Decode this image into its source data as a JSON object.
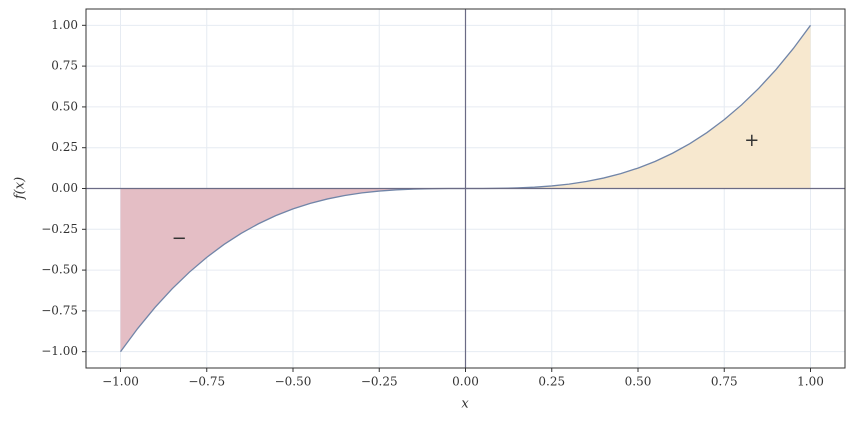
{
  "chart_data": {
    "type": "line",
    "xlabel": "x",
    "ylabel": "f(x)",
    "x": [
      -1,
      -0.95,
      -0.9,
      -0.85,
      -0.8,
      -0.75,
      -0.7,
      -0.65,
      -0.6,
      -0.55,
      -0.5,
      -0.45,
      -0.4,
      -0.35,
      -0.3,
      -0.25,
      -0.2,
      -0.15,
      -0.1,
      -0.05,
      0,
      0.05,
      0.1,
      0.15,
      0.2,
      0.25,
      0.3,
      0.35,
      0.4,
      0.45,
      0.5,
      0.55,
      0.6,
      0.65,
      0.7,
      0.75,
      0.8,
      0.85,
      0.9,
      0.95,
      1
    ],
    "series": [
      {
        "color": "#7185a8",
        "values": [
          -1,
          -0.857375,
          -0.729,
          -0.614125,
          -0.512,
          -0.421875,
          -0.343,
          -0.274625,
          -0.216,
          -0.166375,
          -0.125,
          -0.091125,
          -0.064,
          -0.042875,
          -0.027,
          -0.015625,
          -0.008,
          -0.003375,
          -0.001,
          -0.000125,
          0,
          0.000125,
          0.001,
          0.003375,
          0.008,
          0.015625,
          0.027,
          0.042875,
          0.064,
          0.091125,
          0.125,
          0.166375,
          0.216,
          0.274625,
          0.343,
          0.421875,
          0.512,
          0.614125,
          0.729,
          0.857375,
          1
        ]
      }
    ],
    "fill_colors": {
      "negative": "#e4bec5",
      "positive": "#f7e8cf"
    },
    "annotations": [
      {
        "text": "−",
        "x": -0.83,
        "y": -0.31
      },
      {
        "text": "+",
        "x": 0.83,
        "y": 0.29
      }
    ],
    "xlim": [
      -1.1,
      1.1
    ],
    "ylim": [
      -1.1,
      1.1
    ],
    "xticks": [
      {
        "value": -1,
        "label": "−1.00"
      },
      {
        "value": -0.75,
        "label": "−0.75"
      },
      {
        "value": -0.5,
        "label": "−0.50"
      },
      {
        "value": -0.25,
        "label": "−0.25"
      },
      {
        "value": 0,
        "label": "0.00"
      },
      {
        "value": 0.25,
        "label": "0.25"
      },
      {
        "value": 0.5,
        "label": "0.50"
      },
      {
        "value": 0.75,
        "label": "0.75"
      },
      {
        "value": 1,
        "label": "1.00"
      }
    ],
    "yticks": [
      {
        "value": -1,
        "label": "−1.00"
      },
      {
        "value": -0.75,
        "label": "−0.75"
      },
      {
        "value": -0.5,
        "label": "−0.50"
      },
      {
        "value": -0.25,
        "label": "−0.25"
      },
      {
        "value": 0,
        "label": "0.00"
      },
      {
        "value": 0.25,
        "label": "0.25"
      },
      {
        "value": 0.5,
        "label": "0.50"
      },
      {
        "value": 0.75,
        "label": "0.75"
      },
      {
        "value": 1,
        "label": "1.00"
      }
    ],
    "grid": true,
    "zero_axes": true
  }
}
